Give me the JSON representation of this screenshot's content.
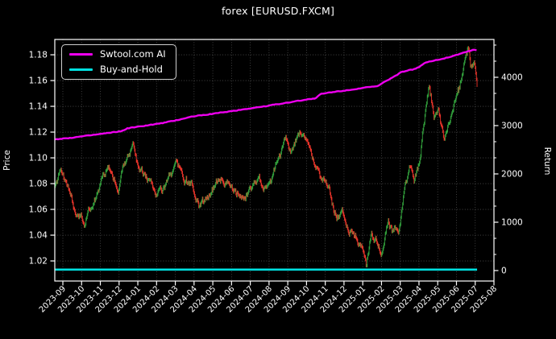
{
  "title": "forex [EURUSD.FXCM]",
  "colors": {
    "background": "#000000",
    "text": "#ffffff",
    "grid": "rgba(255,255,255,0.30)",
    "spine": "#ffffff",
    "ai_line": "#ee00ee",
    "bh_line": "#00e0e0",
    "price_up": "#33a33d",
    "price_down": "#ef352b"
  },
  "chart_data": {
    "type": "line",
    "title": "forex [EURUSD.FXCM]",
    "grid": true,
    "x_tick_labels": [
      "2023-09",
      "2023-10",
      "2023-11",
      "2023-12",
      "2024-01",
      "2024-02",
      "2024-03",
      "2024-04",
      "2024-05",
      "2024-06",
      "2024-07",
      "2024-08",
      "2024-09",
      "2024-10",
      "2024-11",
      "2024-12",
      "2025-01",
      "2025-02",
      "2025-03",
      "2025-04",
      "2025-05",
      "2025-06",
      "2025-07",
      "2025-08"
    ],
    "x_range_months": [
      -0.43,
      23.0
    ],
    "left_axis": {
      "label": "Price",
      "ticks": [
        1.02,
        1.04,
        1.06,
        1.08,
        1.1,
        1.12,
        1.14,
        1.16,
        1.18
      ],
      "range": [
        1.0044,
        1.1919
      ]
    },
    "right_axis": {
      "label": "Return",
      "ticks": [
        0,
        1000,
        2000,
        3000,
        4000
      ],
      "range": [
        -217,
        4783
      ]
    },
    "legend": {
      "position": "upper-left",
      "entries": [
        {
          "label": "Swtool.com AI",
          "color": "#ee00ee"
        },
        {
          "label": "Buy-and-Hold",
          "color": "#00e0e0"
        }
      ]
    },
    "series": [
      {
        "name": "Swtool.com AI",
        "axis": "right",
        "type": "line",
        "color": "#ee00ee",
        "points": [
          [
            -0.43,
            2715
          ],
          [
            0.5,
            2750
          ],
          [
            1.5,
            2800
          ],
          [
            2.5,
            2850
          ],
          [
            3.2,
            2890
          ],
          [
            3.45,
            2945
          ],
          [
            4.0,
            2975
          ],
          [
            4.6,
            3010
          ],
          [
            5.2,
            3045
          ],
          [
            6.0,
            3105
          ],
          [
            6.6,
            3160
          ],
          [
            7.0,
            3195
          ],
          [
            7.6,
            3225
          ],
          [
            8.2,
            3255
          ],
          [
            9.0,
            3300
          ],
          [
            9.8,
            3345
          ],
          [
            10.6,
            3390
          ],
          [
            11.4,
            3440
          ],
          [
            12.2,
            3490
          ],
          [
            13.0,
            3540
          ],
          [
            13.5,
            3565
          ],
          [
            13.75,
            3655
          ],
          [
            14.5,
            3700
          ],
          [
            15.3,
            3740
          ],
          [
            16.1,
            3785
          ],
          [
            16.8,
            3815
          ],
          [
            17.15,
            3900
          ],
          [
            17.6,
            4000
          ],
          [
            18.1,
            4115
          ],
          [
            18.7,
            4165
          ],
          [
            19.0,
            4205
          ],
          [
            19.35,
            4310
          ],
          [
            19.9,
            4355
          ],
          [
            20.5,
            4405
          ],
          [
            21.0,
            4465
          ],
          [
            21.5,
            4525
          ],
          [
            21.9,
            4570
          ],
          [
            22.1,
            4560
          ]
        ]
      },
      {
        "name": "Buy-and-Hold",
        "axis": "right",
        "type": "line",
        "color": "#00e0e0",
        "points": [
          [
            -0.43,
            20
          ],
          [
            22.1,
            20
          ]
        ]
      },
      {
        "name": "EURUSD price",
        "axis": "left",
        "type": "ohlc-dense",
        "up_color": "#33a33d",
        "down_color": "#ef352b",
        "noise_amplitude": 0.004,
        "points": [
          [
            -0.43,
            1.08
          ],
          [
            -0.2,
            1.09
          ],
          [
            0.1,
            1.084
          ],
          [
            0.45,
            1.071
          ],
          [
            0.8,
            1.057
          ],
          [
            1.15,
            1.046
          ],
          [
            1.45,
            1.06
          ],
          [
            1.8,
            1.073
          ],
          [
            2.1,
            1.084
          ],
          [
            2.45,
            1.096
          ],
          [
            2.7,
            1.089
          ],
          [
            2.95,
            1.076
          ],
          [
            3.2,
            1.092
          ],
          [
            3.5,
            1.099
          ],
          [
            3.75,
            1.111
          ],
          [
            4.05,
            1.095
          ],
          [
            4.35,
            1.088
          ],
          [
            4.7,
            1.081
          ],
          [
            5.0,
            1.072
          ],
          [
            5.4,
            1.078
          ],
          [
            5.75,
            1.086
          ],
          [
            6.05,
            1.093
          ],
          [
            6.45,
            1.081
          ],
          [
            6.85,
            1.077
          ],
          [
            7.25,
            1.062
          ],
          [
            7.65,
            1.07
          ],
          [
            8.05,
            1.077
          ],
          [
            8.45,
            1.087
          ],
          [
            8.85,
            1.082
          ],
          [
            9.25,
            1.071
          ],
          [
            9.65,
            1.068
          ],
          [
            10.05,
            1.077
          ],
          [
            10.45,
            1.083
          ],
          [
            10.85,
            1.079
          ],
          [
            11.25,
            1.091
          ],
          [
            11.6,
            1.104
          ],
          [
            11.9,
            1.119
          ],
          [
            12.15,
            1.105
          ],
          [
            12.5,
            1.112
          ],
          [
            12.8,
            1.12
          ],
          [
            13.1,
            1.112
          ],
          [
            13.5,
            1.093
          ],
          [
            13.9,
            1.083
          ],
          [
            14.25,
            1.073
          ],
          [
            14.6,
            1.052
          ],
          [
            14.9,
            1.058
          ],
          [
            15.25,
            1.047
          ],
          [
            15.6,
            1.041
          ],
          [
            15.9,
            1.031
          ],
          [
            16.2,
            1.019
          ],
          [
            16.45,
            1.043
          ],
          [
            16.7,
            1.037
          ],
          [
            17.0,
            1.026
          ],
          [
            17.35,
            1.047
          ],
          [
            17.65,
            1.041
          ],
          [
            17.95,
            1.044
          ],
          [
            18.25,
            1.081
          ],
          [
            18.5,
            1.094
          ],
          [
            18.75,
            1.081
          ],
          [
            19.05,
            1.095
          ],
          [
            19.35,
            1.134
          ],
          [
            19.55,
            1.155
          ],
          [
            19.8,
            1.131
          ],
          [
            20.05,
            1.137
          ],
          [
            20.35,
            1.11
          ],
          [
            20.65,
            1.125
          ],
          [
            20.95,
            1.146
          ],
          [
            21.2,
            1.157
          ],
          [
            21.45,
            1.174
          ],
          [
            21.6,
            1.182
          ],
          [
            21.8,
            1.167
          ],
          [
            21.95,
            1.173
          ],
          [
            22.1,
            1.158
          ]
        ]
      }
    ]
  }
}
